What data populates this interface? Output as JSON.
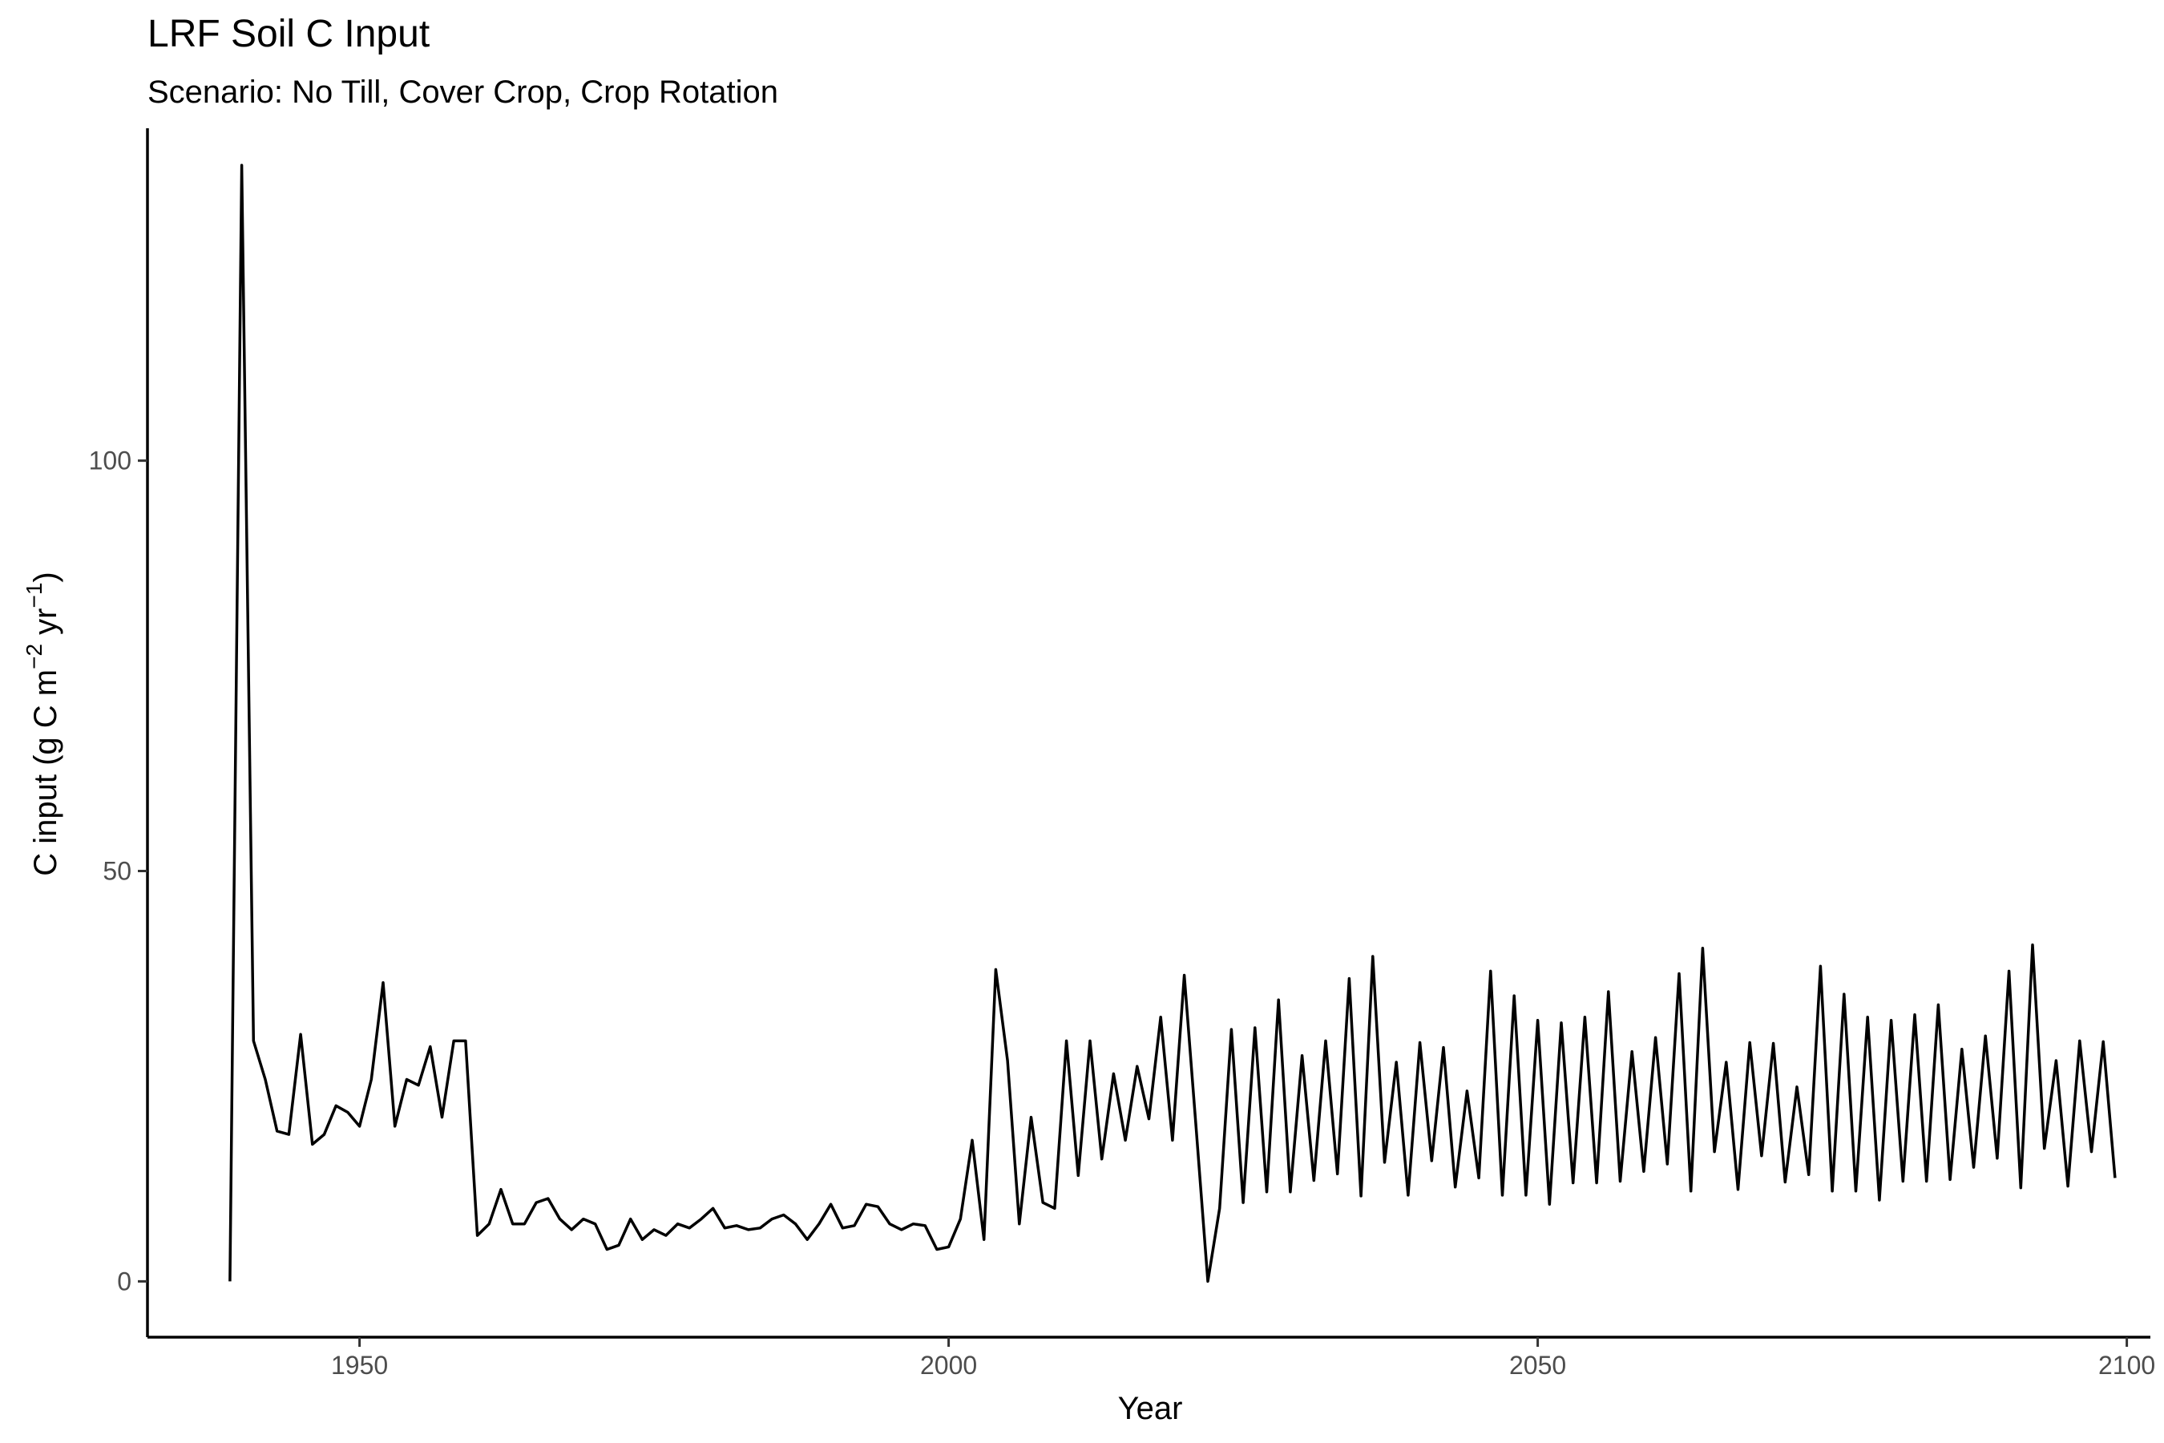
{
  "chart_data": {
    "type": "line",
    "title": "LRF Soil C Input",
    "subtitle": "Scenario: No Till, Cover Crop, Crop Rotation",
    "xlabel": "Year",
    "ylabel_parts": {
      "base": "C input (g C m",
      "sup1": "−2",
      "mid": " yr",
      "sup2": "−1",
      "end": ")"
    },
    "xlim": [
      1932,
      2102
    ],
    "ylim": [
      -6.8,
      140.5
    ],
    "xticks": [
      1950,
      2000,
      2050,
      2100
    ],
    "yticks": [
      0,
      50,
      100
    ],
    "grid": false,
    "legend": "none",
    "line_color": "#000000",
    "series": [
      {
        "x": [
          1939,
          1940,
          1941,
          1942,
          1943,
          1944,
          1945,
          1946,
          1947,
          1948,
          1949,
          1950,
          1951,
          1952,
          1953,
          1954,
          1955,
          1956,
          1957,
          1958,
          1959,
          1960,
          1961,
          1962,
          1963,
          1964,
          1965,
          1966,
          1967,
          1968,
          1969,
          1970,
          1971,
          1972,
          1973,
          1974,
          1975,
          1976,
          1977,
          1978,
          1979,
          1980,
          1981,
          1982,
          1983,
          1984,
          1985,
          1986,
          1987,
          1988,
          1989,
          1990,
          1991,
          1992,
          1993,
          1994,
          1995,
          1996,
          1997,
          1998,
          1999,
          2000,
          2001,
          2002,
          2003,
          2004,
          2005,
          2006,
          2007,
          2008,
          2009,
          2010,
          2011,
          2012,
          2013,
          2014,
          2015,
          2016,
          2017,
          2018,
          2019,
          2020,
          2021,
          2022,
          2023,
          2024,
          2025,
          2026,
          2027,
          2028,
          2029,
          2030,
          2031,
          2032,
          2033,
          2034,
          2035,
          2036,
          2037,
          2038,
          2039,
          2040,
          2041,
          2042,
          2043,
          2044,
          2045,
          2046,
          2047,
          2048,
          2049,
          2050,
          2051,
          2052,
          2053,
          2054,
          2055,
          2056,
          2057,
          2058,
          2059,
          2060,
          2061,
          2062,
          2063,
          2064,
          2065,
          2066,
          2067,
          2068,
          2069,
          2070,
          2071,
          2072,
          2073,
          2074,
          2075,
          2076,
          2077,
          2078,
          2079,
          2080,
          2081,
          2082,
          2083,
          2084,
          2085,
          2086,
          2087,
          2088,
          2089,
          2090,
          2091,
          2092,
          2093,
          2094,
          2095,
          2096,
          2097,
          2098,
          2099
        ],
        "y": [
          0,
          136,
          29.3,
          24.6,
          18.3,
          17.9,
          30.1,
          16.7,
          17.9,
          21.4,
          20.6,
          18.9,
          24.6,
          36.4,
          18.9,
          24.6,
          23.9,
          28.6,
          20.0,
          29.3,
          29.3,
          5.6,
          7.0,
          11.2,
          7.0,
          7.0,
          9.6,
          10.1,
          7.6,
          6.3,
          7.6,
          7.0,
          3.9,
          4.4,
          7.6,
          5.1,
          6.3,
          5.6,
          7.0,
          6.5,
          7.6,
          8.9,
          6.5,
          6.8,
          6.3,
          6.5,
          7.6,
          8.1,
          7.0,
          5.1,
          7.0,
          9.4,
          6.5,
          6.8,
          9.4,
          9.1,
          7.0,
          6.3,
          7.0,
          6.8,
          3.9,
          4.2,
          7.6,
          17.2,
          5.1,
          38.0,
          26.9,
          7.0,
          20.0,
          9.6,
          8.9,
          29.3,
          12.9,
          29.3,
          14.9,
          25.3,
          17.2,
          26.2,
          19.8,
          32.2,
          17.2,
          37.3,
          18.8,
          0,
          8.9,
          30.7,
          9.6,
          30.9,
          10.9,
          34.3,
          10.9,
          27.5,
          12.3,
          29.3,
          13.1,
          36.9,
          10.4,
          39.6,
          14.5,
          26.7,
          10.5,
          29.1,
          14.7,
          28.5,
          11.5,
          23.2,
          12.6,
          37.8,
          10.5,
          34.8,
          10.5,
          31.8,
          9.4,
          31.5,
          12.0,
          32.2,
          12.0,
          35.3,
          12.2,
          28.0,
          13.4,
          29.7,
          14.3,
          37.5,
          11.0,
          40.6,
          15.8,
          26.7,
          11.2,
          29.1,
          15.3,
          29.0,
          12.1,
          23.7,
          13.0,
          38.4,
          11.0,
          35.0,
          11.0,
          32.2,
          9.9,
          31.8,
          12.2,
          32.5,
          12.2,
          33.7,
          12.4,
          28.3,
          13.9,
          29.9,
          15.0,
          37.8,
          11.4,
          41.0,
          16.2,
          26.9,
          11.6,
          29.3,
          15.8,
          29.2,
          12.6
        ]
      }
    ]
  }
}
